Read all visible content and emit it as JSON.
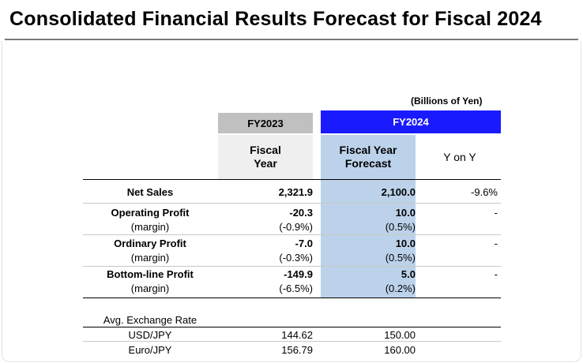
{
  "title": "Consolidated Financial Results Forecast for Fiscal 2024",
  "units": "(Billions of Yen)",
  "headers": {
    "fy2023": "FY2023",
    "fy2024": "FY2024",
    "fy2023_sub": "Fiscal\nYear",
    "fy2024_sub": "Fiscal Year\nForecast",
    "yoy_sub": "Y on Y"
  },
  "rows": [
    {
      "label": "Net Sales",
      "fy2023": "2,321.9",
      "forecast": "2,100.0",
      "yoy": "-9.6%"
    },
    {
      "label": "Operating Profit",
      "fy2023": "-20.3",
      "forecast": "10.0",
      "yoy": "-"
    },
    {
      "label": "(margin)",
      "fy2023": "(-0.9%)",
      "forecast": "(0.5%)",
      "yoy": ""
    },
    {
      "label": "Ordinary Profit",
      "fy2023": "-7.0",
      "forecast": "10.0",
      "yoy": "-"
    },
    {
      "label": "(margin)",
      "fy2023": "(-0.3%)",
      "forecast": "(0.5%)",
      "yoy": ""
    },
    {
      "label": "Bottom-line Profit",
      "fy2023": "-149.9",
      "forecast": "5.0",
      "yoy": "-"
    },
    {
      "label": "(margin)",
      "fy2023": "(-6.5%)",
      "forecast": "(0.2%)",
      "yoy": ""
    }
  ],
  "exchange": {
    "heading": "Avg. Exchange Rate",
    "rows": [
      {
        "label": "USD/JPY",
        "fy2023": "144.62",
        "forecast": "150.00"
      },
      {
        "label": "Euro/JPY",
        "fy2023": "156.79",
        "forecast": "160.00"
      }
    ]
  }
}
